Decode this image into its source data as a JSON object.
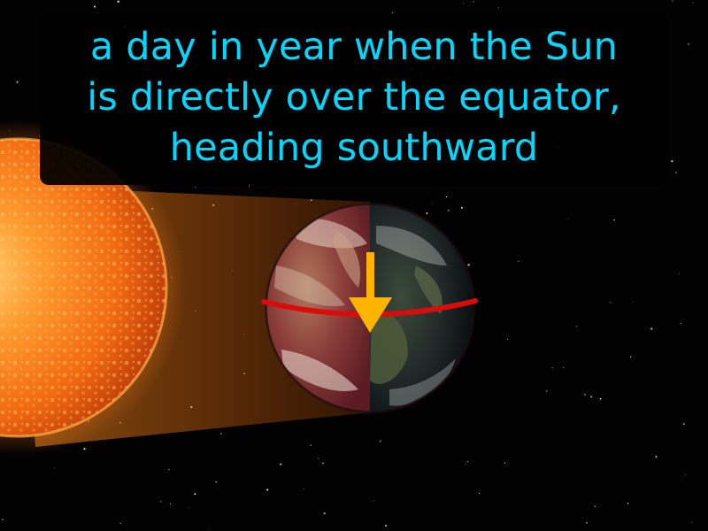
{
  "caption": {
    "lines": [
      "a day in year when the Sun",
      "is directly over the equator,",
      "heading southward"
    ]
  },
  "colors": {
    "caption_text": "#00d8ff",
    "caption_bg": "#000000",
    "equator_line": "#d90c0c",
    "arrow": "#ffb400",
    "sun": "#ff7a1a",
    "sunlight": "#ff8c1a"
  },
  "icons": {
    "arrow": "arrow-down-icon"
  }
}
